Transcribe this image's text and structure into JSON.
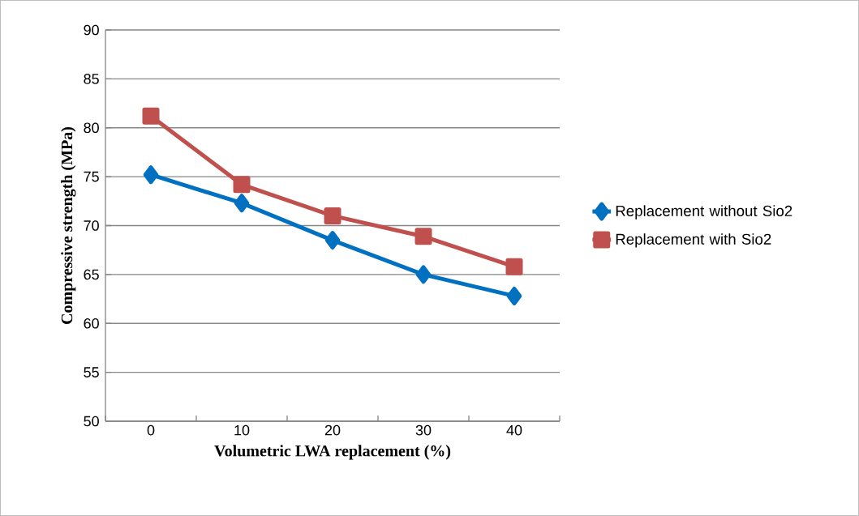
{
  "chart_data": {
    "type": "line",
    "xlabel": "Volumetric LWA replacement (%)",
    "ylabel": "Compressive strength (MPa)",
    "categories": [
      "0",
      "10",
      "20",
      "30",
      "40"
    ],
    "series": [
      {
        "name": "Replacement without Sio2",
        "color": "#0070c0",
        "marker": "diamond",
        "values": [
          75.2,
          72.3,
          68.5,
          65.0,
          62.8
        ]
      },
      {
        "name": "Replacement with Sio2",
        "color": "#c0504d",
        "marker": "square",
        "values": [
          81.2,
          74.2,
          71.0,
          68.9,
          65.8
        ]
      }
    ],
    "ylim": [
      50,
      90
    ],
    "yticks": [
      50,
      55,
      60,
      65,
      70,
      75,
      80,
      85,
      90
    ],
    "grid": "y",
    "legend": "right",
    "line_style": "solid"
  }
}
